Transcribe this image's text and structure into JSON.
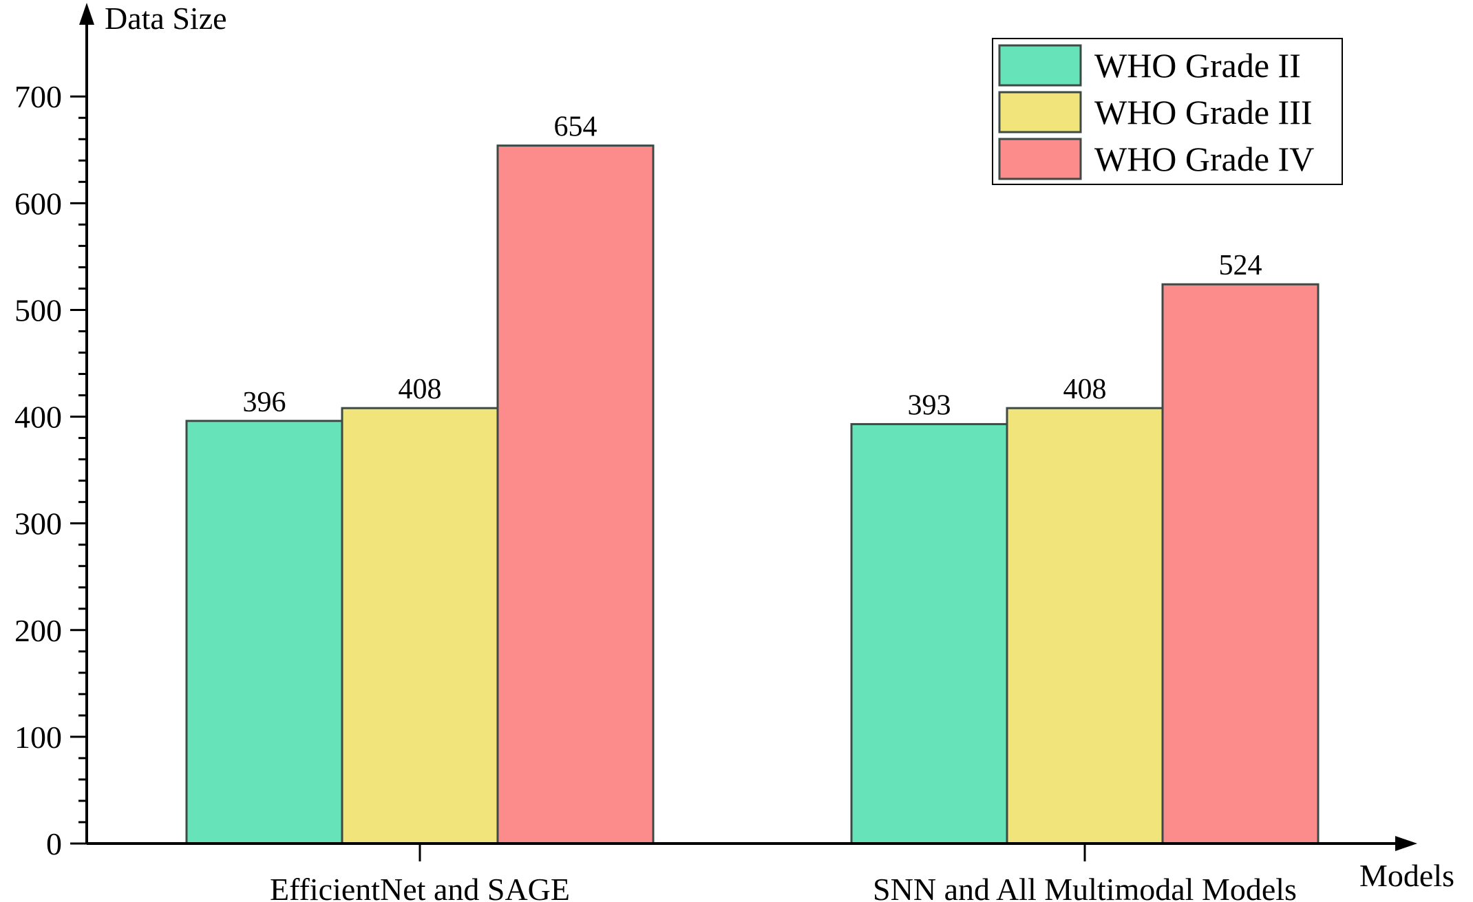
{
  "chart_data": {
    "type": "bar",
    "ylabel": "Data Size",
    "xlabel": "Models",
    "categories": [
      "EfficientNet and SAGE",
      "SNN and All Multimodal Models"
    ],
    "series": [
      {
        "name": "WHO Grade II",
        "values": [
          396,
          393
        ],
        "color": "#66e3b9"
      },
      {
        "name": "WHO Grade III",
        "values": [
          408,
          408
        ],
        "color": "#f0e47a"
      },
      {
        "name": "WHO Grade IV",
        "values": [
          654,
          524
        ],
        "color": "#fc8b8b"
      }
    ],
    "ylim": [
      0,
      700
    ],
    "yticks": [
      "0",
      "100",
      "200",
      "300",
      "400",
      "500",
      "600",
      "700"
    ],
    "legend": {
      "position": "top-right"
    },
    "grid": false
  }
}
